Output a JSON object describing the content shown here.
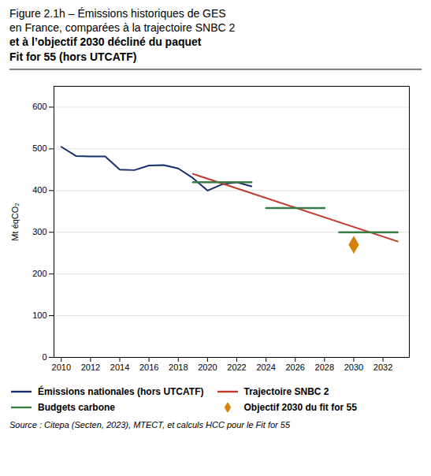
{
  "chart_data": {
    "type": "line",
    "title": "Figure 2.1h – Émissions historiques de GES\nen France, comparées à la trajectoire SNBC 2",
    "subtitle": "et à l’objectif 2030 décliné du paquet\nFit for 55 (hors UTCATF)",
    "y_label": "Mt éqCO₂",
    "caption": "Source : Citepa (Secten, 2023), MTECT, et calculs HCC pour le Fit for 55",
    "series": [
      {
        "name": "Émissions nationales (hors UTCATF)",
        "type": "line",
        "color": "#1a2e6c",
        "x": [
          2010,
          2011,
          2012,
          2013,
          2014,
          2015,
          2016,
          2017,
          2018,
          2019,
          2020,
          2021,
          2022,
          2023
        ],
        "values": [
          505,
          483,
          482,
          482,
          450,
          449,
          460,
          461,
          453,
          430,
          400,
          415,
          420,
          410
        ]
      },
      {
        "name": "Trajectoire SNBC 2",
        "type": "line",
        "color": "#c0392b",
        "x": [
          2019,
          2033
        ],
        "values": [
          440,
          278
        ]
      },
      {
        "name": "Budgets carbone",
        "type": "line",
        "color": "#3a7d44",
        "segments": [
          {
            "x": [
              2019,
              2023
            ],
            "values": [
              420,
              420
            ]
          },
          {
            "x": [
              2024,
              2028
            ],
            "values": [
              358,
              358
            ]
          },
          {
            "x": [
              2029,
              2033
            ],
            "values": [
              300,
              300
            ]
          }
        ]
      },
      {
        "name": "Objectif 2030 du fit for 55",
        "type": "scatter",
        "marker": "diamond",
        "color": "#d4820a",
        "x": [
          2030
        ],
        "values": [
          270
        ]
      }
    ],
    "xlim": [
      2009.5,
      2033.8
    ],
    "xticks": [
      2010,
      2012,
      2014,
      2016,
      2018,
      2020,
      2022,
      2024,
      2026,
      2028,
      2030,
      2032
    ],
    "ylim": [
      0,
      650
    ],
    "yticks": [
      0,
      100,
      200,
      300,
      400,
      500,
      600
    ],
    "grid": true,
    "legend": "bottom"
  }
}
